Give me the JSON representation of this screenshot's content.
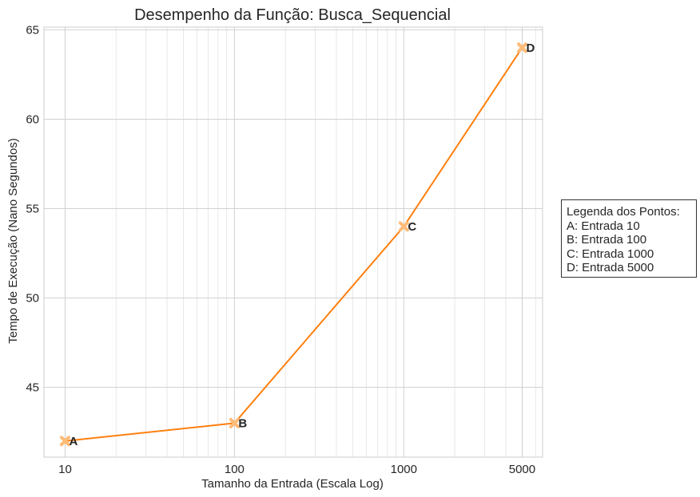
{
  "chart_data": {
    "type": "line",
    "title": "Desempenho da Função: Busca_Sequencial",
    "xlabel": "Tamanho da Entrada (Escala Log)",
    "ylabel": "Tempo de Execução (Nano Segundos)",
    "x_scale": "log",
    "x": [
      10,
      100,
      1000,
      5000
    ],
    "y": [
      42,
      43,
      54,
      64
    ],
    "point_labels": [
      "A",
      "B",
      "C",
      "D"
    ],
    "x_ticks": [
      10,
      100,
      1000,
      5000
    ],
    "x_tick_labels": [
      "10",
      "100",
      "1000",
      "5000"
    ],
    "y_ticks": [
      45,
      50,
      55,
      60,
      65
    ],
    "y_tick_labels": [
      "45",
      "50",
      "55",
      "60",
      "65"
    ],
    "xlim": [
      7.5,
      6600
    ],
    "ylim": [
      41.1,
      65.15
    ],
    "grid": true,
    "line_color": "#ff7f0e",
    "marker": "x",
    "legend": {
      "title": "Legenda dos Pontos:",
      "entries": [
        "A: Entrada 10",
        "B: Entrada 100",
        "C: Entrada 1000",
        "D: Entrada 5000"
      ],
      "placement": "right"
    }
  }
}
